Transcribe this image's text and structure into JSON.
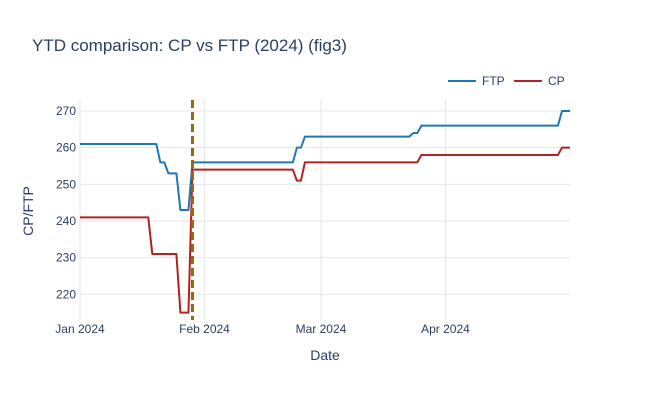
{
  "chart_data": {
    "type": "line",
    "title": "YTD comparison: CP vs FTP (2024) (fig3)",
    "xlabel": "Date",
    "ylabel": "CP/FTP",
    "xlim": [
      "2024-01-01",
      "2024-05-02"
    ],
    "ylim": [
      213,
      273
    ],
    "grid": true,
    "legend": "top-right",
    "x_ticks": [
      {
        "date": "2024-01-01",
        "label": "Jan 2024"
      },
      {
        "date": "2024-02-01",
        "label": "Feb 2024"
      },
      {
        "date": "2024-03-01",
        "label": "Mar 2024"
      },
      {
        "date": "2024-04-01",
        "label": "Apr 2024"
      }
    ],
    "y_ticks": [
      220,
      230,
      240,
      250,
      260,
      270
    ],
    "marker_line": {
      "date": "2024-01-29",
      "color": "#a0620a",
      "style": "dashed"
    },
    "series": [
      {
        "name": "FTP",
        "color": "#1f77b4",
        "points": [
          [
            "2024-01-01",
            261
          ],
          [
            "2024-01-20",
            261
          ],
          [
            "2024-01-21",
            256
          ],
          [
            "2024-01-22",
            256
          ],
          [
            "2024-01-23",
            253
          ],
          [
            "2024-01-25",
            253
          ],
          [
            "2024-01-26",
            243
          ],
          [
            "2024-01-28",
            243
          ],
          [
            "2024-01-29",
            256
          ],
          [
            "2024-02-23",
            256
          ],
          [
            "2024-02-24",
            260
          ],
          [
            "2024-02-25",
            260
          ],
          [
            "2024-02-26",
            263
          ],
          [
            "2024-03-23",
            263
          ],
          [
            "2024-03-24",
            264
          ],
          [
            "2024-03-25",
            264
          ],
          [
            "2024-03-26",
            266
          ],
          [
            "2024-04-29",
            266
          ],
          [
            "2024-04-30",
            270
          ],
          [
            "2024-05-02",
            270
          ]
        ]
      },
      {
        "name": "CP",
        "color": "#b22222",
        "points": [
          [
            "2024-01-01",
            241
          ],
          [
            "2024-01-18",
            241
          ],
          [
            "2024-01-19",
            231
          ],
          [
            "2024-01-25",
            231
          ],
          [
            "2024-01-26",
            215
          ],
          [
            "2024-01-28",
            215
          ],
          [
            "2024-01-29",
            254
          ],
          [
            "2024-02-23",
            254
          ],
          [
            "2024-02-24",
            251
          ],
          [
            "2024-02-25",
            251
          ],
          [
            "2024-02-26",
            256
          ],
          [
            "2024-03-25",
            256
          ],
          [
            "2024-03-26",
            258
          ],
          [
            "2024-04-29",
            258
          ],
          [
            "2024-04-30",
            260
          ],
          [
            "2024-05-02",
            260
          ]
        ]
      }
    ]
  }
}
